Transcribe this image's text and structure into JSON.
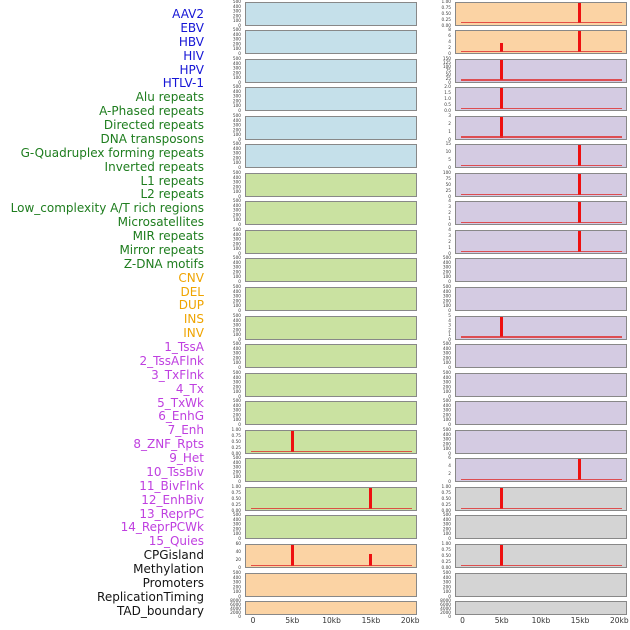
{
  "figure": {
    "label_colors": {
      "virus": "#1515d6",
      "repeat": "#1e7d1e",
      "sv": "#efa400",
      "chromatin": "#bf3fe0",
      "other": "#141414"
    },
    "panel_colors": {
      "blue": "#c5e0ea",
      "green": "#cae2a1",
      "orange": "#fbd3a4",
      "purple": "#d4cbe2",
      "gray": "#d4d4d4"
    },
    "spike_color": "#ee1010"
  },
  "chart_data": {
    "type": "area",
    "title": "",
    "xlabel": "",
    "ylabel": "",
    "x_range_kb": [
      0,
      20
    ],
    "x_ticks": [
      "0",
      "5kb",
      "10kb",
      "15kb",
      "20kb"
    ],
    "description": "Two columns of genomic feature signal tracks over a 0-20kb window; red vertical spikes mark peaks at the 5kb and 15kb positions; 44 feature labels listed at left.",
    "rows": [
      {
        "label": "AAV2",
        "group": "virus"
      },
      {
        "label": "EBV",
        "group": "virus"
      },
      {
        "label": "HBV",
        "group": "virus"
      },
      {
        "label": "HIV",
        "group": "virus"
      },
      {
        "label": "HPV",
        "group": "virus"
      },
      {
        "label": "HTLV-1",
        "group": "virus"
      },
      {
        "label": "Alu repeats",
        "group": "repeat"
      },
      {
        "label": "A-Phased repeats",
        "group": "repeat"
      },
      {
        "label": "Directed repeats",
        "group": "repeat"
      },
      {
        "label": "DNA transposons",
        "group": "repeat"
      },
      {
        "label": "G-Quadruplex forming repeats",
        "group": "repeat"
      },
      {
        "label": "Inverted repeats",
        "group": "repeat"
      },
      {
        "label": "L1 repeats",
        "group": "repeat"
      },
      {
        "label": "L2 repeats",
        "group": "repeat"
      },
      {
        "label": "Low_complexity A/T rich regions",
        "group": "repeat"
      },
      {
        "label": "Microsatellites",
        "group": "repeat"
      },
      {
        "label": "MIR repeats",
        "group": "repeat"
      },
      {
        "label": "Mirror repeats",
        "group": "repeat"
      },
      {
        "label": "Z-DNA motifs",
        "group": "repeat"
      },
      {
        "label": "CNV",
        "group": "sv"
      },
      {
        "label": "DEL",
        "group": "sv"
      },
      {
        "label": "DUP",
        "group": "sv"
      },
      {
        "label": "INS",
        "group": "sv"
      },
      {
        "label": "INV",
        "group": "sv"
      },
      {
        "label": "1_TssA",
        "group": "chromatin"
      },
      {
        "label": "2_TssAFlnk",
        "group": "chromatin"
      },
      {
        "label": "3_TxFlnk",
        "group": "chromatin"
      },
      {
        "label": "4_Tx",
        "group": "chromatin"
      },
      {
        "label": "5_TxWk",
        "group": "chromatin"
      },
      {
        "label": "6_EnhG",
        "group": "chromatin"
      },
      {
        "label": "7_Enh",
        "group": "chromatin"
      },
      {
        "label": "8_ZNF_Rpts",
        "group": "chromatin"
      },
      {
        "label": "9_Het",
        "group": "chromatin"
      },
      {
        "label": "10_TssBiv",
        "group": "chromatin"
      },
      {
        "label": "11_BivFlnk",
        "group": "chromatin"
      },
      {
        "label": "12_EnhBiv",
        "group": "chromatin"
      },
      {
        "label": "13_ReprPC",
        "group": "chromatin"
      },
      {
        "label": "14_ReprPCWk",
        "group": "chromatin"
      },
      {
        "label": "15_Quies",
        "group": "chromatin"
      },
      {
        "label": "CPGisland",
        "group": "other"
      },
      {
        "label": "Methylation",
        "group": "other"
      },
      {
        "label": "Promoters",
        "group": "other"
      },
      {
        "label": "ReplicationTiming",
        "group": "other"
      },
      {
        "label": "TAD_boundary",
        "group": "other"
      }
    ],
    "left_panels": [
      {
        "bg": "blue",
        "yticks": [
          "500",
          "400",
          "300",
          "200",
          "100",
          "0"
        ],
        "spikes": [],
        "baseline": false
      },
      {
        "bg": "blue",
        "yticks": [
          "500",
          "400",
          "300",
          "200",
          "100",
          "0"
        ],
        "spikes": [],
        "baseline": false
      },
      {
        "bg": "blue",
        "yticks": [
          "500",
          "400",
          "300",
          "200",
          "100",
          "0"
        ],
        "spikes": [],
        "baseline": false
      },
      {
        "bg": "blue",
        "yticks": [
          "500",
          "400",
          "300",
          "200",
          "100",
          "0"
        ],
        "spikes": [],
        "baseline": false
      },
      {
        "bg": "blue",
        "yticks": [
          "500",
          "400",
          "300",
          "200",
          "100",
          "0"
        ],
        "spikes": [],
        "baseline": false
      },
      {
        "bg": "blue",
        "yticks": [
          "500",
          "400",
          "300",
          "200",
          "100",
          "0"
        ],
        "spikes": [],
        "baseline": false
      },
      {
        "bg": "green",
        "yticks": [
          "500",
          "400",
          "300",
          "200",
          "100",
          "0"
        ],
        "spikes": [],
        "baseline": false
      },
      {
        "bg": "green",
        "yticks": [
          "500",
          "400",
          "300",
          "200",
          "100",
          "0"
        ],
        "spikes": [],
        "baseline": false
      },
      {
        "bg": "green",
        "yticks": [
          "500",
          "400",
          "300",
          "200",
          "100",
          "0"
        ],
        "spikes": [],
        "baseline": false
      },
      {
        "bg": "green",
        "yticks": [
          "500",
          "400",
          "300",
          "200",
          "100",
          "0"
        ],
        "spikes": [],
        "baseline": false
      },
      {
        "bg": "green",
        "yticks": [
          "500",
          "400",
          "300",
          "200",
          "100",
          "0"
        ],
        "spikes": [],
        "baseline": false
      },
      {
        "bg": "green",
        "yticks": [
          "500",
          "400",
          "300",
          "200",
          "100",
          "0"
        ],
        "spikes": [],
        "baseline": false
      },
      {
        "bg": "green",
        "yticks": [
          "500",
          "400",
          "300",
          "200",
          "100",
          "0"
        ],
        "spikes": [],
        "baseline": false
      },
      {
        "bg": "green",
        "yticks": [
          "500",
          "400",
          "300",
          "200",
          "100",
          "0"
        ],
        "spikes": [],
        "baseline": false
      },
      {
        "bg": "green",
        "yticks": [
          "500",
          "400",
          "300",
          "200",
          "100",
          "0"
        ],
        "spikes": [],
        "baseline": false
      },
      {
        "bg": "green",
        "yticks": [
          "1.00",
          "0.75",
          "0.50",
          "0.25",
          "0.00"
        ],
        "spikes": [
          {
            "x_kb": 5,
            "height_frac": 1.0
          }
        ],
        "baseline": true
      },
      {
        "bg": "green",
        "yticks": [
          "500",
          "400",
          "300",
          "200",
          "100",
          "0"
        ],
        "spikes": [],
        "baseline": false
      },
      {
        "bg": "green",
        "yticks": [
          "1.00",
          "0.75",
          "0.50",
          "0.25",
          "0.00"
        ],
        "spikes": [
          {
            "x_kb": 15,
            "height_frac": 1.0
          }
        ],
        "baseline": true
      },
      {
        "bg": "green",
        "yticks": [
          "500",
          "400",
          "300",
          "200",
          "100",
          "0"
        ],
        "spikes": [],
        "baseline": false
      },
      {
        "bg": "orange",
        "yticks": [
          "60",
          "40",
          "20",
          "0"
        ],
        "spikes": [
          {
            "x_kb": 5,
            "height_frac": 1.0
          },
          {
            "x_kb": 15,
            "height_frac": 0.55
          }
        ],
        "baseline": true
      },
      {
        "bg": "orange",
        "yticks": [
          "500",
          "400",
          "300",
          "200",
          "100",
          "0"
        ],
        "spikes": [],
        "baseline": false
      },
      {
        "bg": "orange",
        "yticks": [
          "8000",
          "6000",
          "4000",
          "2000",
          "0"
        ],
        "spikes": [],
        "baseline": false
      }
    ],
    "right_panels": [
      {
        "bg": "orange",
        "yticks": [
          "1.00",
          "0.75",
          "0.50",
          "0.25",
          "0.00"
        ],
        "spikes": [
          {
            "x_kb": 15,
            "height_frac": 1.0
          }
        ],
        "baseline": true
      },
      {
        "bg": "orange",
        "yticks": [
          "8",
          "6",
          "4",
          "2",
          "0"
        ],
        "spikes": [
          {
            "x_kb": 5,
            "height_frac": 0.42
          },
          {
            "x_kb": 15,
            "height_frac": 1.0
          }
        ],
        "baseline": true
      },
      {
        "bg": "purple",
        "yticks": [
          "150",
          "125",
          "100",
          "75",
          "50",
          "25",
          "0"
        ],
        "spikes": [
          {
            "x_kb": 5,
            "height_frac": 1.0
          }
        ],
        "baseline": true
      },
      {
        "bg": "purple",
        "yticks": [
          "2.0",
          "1.5",
          "1.0",
          "0.5",
          "0.0"
        ],
        "spikes": [
          {
            "x_kb": 5,
            "height_frac": 1.0
          }
        ],
        "baseline": true
      },
      {
        "bg": "purple",
        "yticks": [
          "3",
          "2",
          "1",
          "0"
        ],
        "spikes": [
          {
            "x_kb": 5,
            "height_frac": 1.0
          }
        ],
        "baseline": true
      },
      {
        "bg": "purple",
        "yticks": [
          "15",
          "10",
          "5",
          "0"
        ],
        "spikes": [
          {
            "x_kb": 15,
            "height_frac": 1.0
          }
        ],
        "baseline": true
      },
      {
        "bg": "purple",
        "yticks": [
          "100",
          "75",
          "50",
          "25",
          "0"
        ],
        "spikes": [
          {
            "x_kb": 15,
            "height_frac": 1.0
          }
        ],
        "baseline": true
      },
      {
        "bg": "purple",
        "yticks": [
          "4",
          "3",
          "2",
          "1",
          "0"
        ],
        "spikes": [
          {
            "x_kb": 15,
            "height_frac": 1.0
          }
        ],
        "baseline": true
      },
      {
        "bg": "purple",
        "yticks": [
          "4",
          "3",
          "2",
          "1",
          "0"
        ],
        "spikes": [
          {
            "x_kb": 15,
            "height_frac": 1.0
          }
        ],
        "baseline": true
      },
      {
        "bg": "purple",
        "yticks": [
          "500",
          "400",
          "300",
          "200",
          "100",
          "0"
        ],
        "spikes": [],
        "baseline": false
      },
      {
        "bg": "purple",
        "yticks": [
          "500",
          "400",
          "300",
          "200",
          "100",
          "0"
        ],
        "spikes": [],
        "baseline": false
      },
      {
        "bg": "purple",
        "yticks": [
          "5",
          "4",
          "3",
          "2",
          "1",
          "0"
        ],
        "spikes": [
          {
            "x_kb": 5,
            "height_frac": 1.0
          }
        ],
        "baseline": true
      },
      {
        "bg": "purple",
        "yticks": [
          "500",
          "400",
          "300",
          "200",
          "100",
          "0"
        ],
        "spikes": [],
        "baseline": false
      },
      {
        "bg": "purple",
        "yticks": [
          "500",
          "400",
          "300",
          "200",
          "100",
          "0"
        ],
        "spikes": [],
        "baseline": false
      },
      {
        "bg": "purple",
        "yticks": [
          "500",
          "400",
          "300",
          "200",
          "100",
          "0"
        ],
        "spikes": [],
        "baseline": false
      },
      {
        "bg": "purple",
        "yticks": [
          "500",
          "400",
          "300",
          "200",
          "100",
          "0"
        ],
        "spikes": [],
        "baseline": false
      },
      {
        "bg": "purple",
        "yticks": [
          "6",
          "4",
          "2",
          "0"
        ],
        "spikes": [
          {
            "x_kb": 15,
            "height_frac": 1.0
          }
        ],
        "baseline": true
      },
      {
        "bg": "gray",
        "yticks": [
          "1.00",
          "0.75",
          "0.50",
          "0.25",
          "0.00"
        ],
        "spikes": [
          {
            "x_kb": 5,
            "height_frac": 1.0
          }
        ],
        "baseline": true
      },
      {
        "bg": "gray",
        "yticks": [
          "500",
          "400",
          "300",
          "200",
          "100",
          "0"
        ],
        "spikes": [],
        "baseline": false
      },
      {
        "bg": "gray",
        "yticks": [
          "1.00",
          "0.75",
          "0.50",
          "0.25",
          "0.00"
        ],
        "spikes": [
          {
            "x_kb": 5,
            "height_frac": 1.0
          }
        ],
        "baseline": true
      },
      {
        "bg": "gray",
        "yticks": [
          "500",
          "400",
          "300",
          "200",
          "100",
          "0"
        ],
        "spikes": [],
        "baseline": false
      },
      {
        "bg": "gray",
        "yticks": [
          "8000",
          "6000",
          "4000",
          "2000",
          "0"
        ],
        "spikes": [],
        "baseline": false
      }
    ]
  }
}
